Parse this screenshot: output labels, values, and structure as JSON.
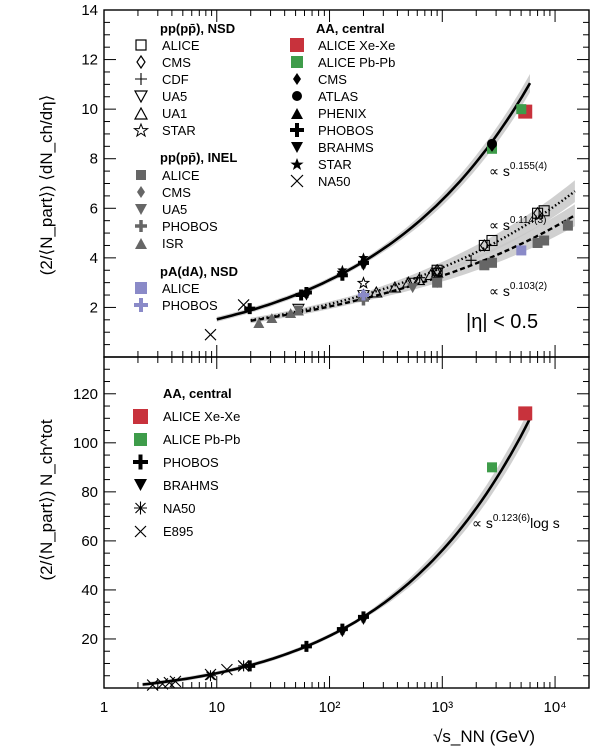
{
  "chart_data": [
    {
      "type": "scatter",
      "panel": "top",
      "xscale": "log",
      "xlim": [
        1,
        20000
      ],
      "ylim": [
        0,
        14
      ],
      "yticks": [
        2,
        4,
        6,
        8,
        10,
        12,
        14
      ],
      "xticks": [
        {
          "v": 1,
          "label": "1"
        },
        {
          "v": 10,
          "label": "10"
        },
        {
          "v": 100,
          "label": "10²"
        },
        {
          "v": 1000,
          "label": "10³"
        },
        {
          "v": 10000,
          "label": "10⁴"
        }
      ],
      "ylabel": "(2/⟨N_part⟩) ⟨dN_ch/dη⟩",
      "annotation": "|η| < 0.5",
      "fit_labels": [
        {
          "text": "∝ s^0.155(4)",
          "pre": "∝ s",
          "sup": "0.155(4)"
        },
        {
          "text": "∝ s^0.114(3)",
          "pre": "∝ s",
          "sup": "0.114(3)"
        },
        {
          "text": "∝ s^0.103(2)",
          "pre": "∝ s",
          "sup": "0.103(2)"
        }
      ],
      "legend": [
        {
          "heading": "pp(pp̄), NSD",
          "items": [
            "ALICE",
            "CMS",
            "CDF",
            "UA5",
            "UA1",
            "STAR"
          ]
        },
        {
          "heading": "pp(pp̄), INEL",
          "items": [
            "ALICE",
            "CMS",
            "UA5",
            "PHOBOS",
            "ISR"
          ]
        },
        {
          "heading": "pA(dA), NSD",
          "items": [
            "ALICE",
            "PHOBOS"
          ]
        },
        {
          "heading": "AA, central",
          "items": [
            "ALICE Xe-Xe",
            "ALICE Pb-Pb",
            "CMS",
            "ATLAS",
            "PHENIX",
            "PHOBOS",
            "BRAHMS",
            "STAR",
            "NA50"
          ]
        }
      ],
      "series": [
        {
          "name": "AA, central: ALICE Xe-Xe",
          "color": "#c8323c",
          "x": [
            5440
          ],
          "y": [
            9.9
          ]
        },
        {
          "name": "AA, central: ALICE Pb-Pb",
          "color": "#3e9c4a",
          "x": [
            2760,
            5020
          ],
          "y": [
            8.4,
            10.0
          ]
        },
        {
          "name": "AA, central: CMS",
          "x": [
            2760
          ],
          "y": [
            8.5
          ]
        },
        {
          "name": "AA, central: ATLAS",
          "x": [
            2760
          ],
          "y": [
            8.6
          ]
        },
        {
          "name": "AA, central: PHENIX",
          "x": [
            130,
            200
          ],
          "y": [
            3.4,
            3.9
          ]
        },
        {
          "name": "AA, central: PHOBOS",
          "x": [
            19.6,
            56,
            62.4,
            130,
            200
          ],
          "y": [
            1.95,
            2.5,
            2.6,
            3.3,
            3.8
          ]
        },
        {
          "name": "AA, central: BRAHMS",
          "x": [
            62.4,
            130,
            200
          ],
          "y": [
            2.5,
            3.3,
            3.7
          ]
        },
        {
          "name": "AA, central: STAR",
          "x": [
            130,
            200
          ],
          "y": [
            3.5,
            4.0
          ]
        },
        {
          "name": "AA, central: NA50",
          "x": [
            8.8,
            17.3
          ],
          "y": [
            0.9,
            2.1
          ]
        },
        {
          "name": "pp(pp̄), NSD: ALICE",
          "x": [
            900,
            2360,
            2760,
            7000,
            8000
          ],
          "y": [
            3.5,
            4.5,
            4.7,
            5.8,
            5.9
          ]
        },
        {
          "name": "pp(pp̄), NSD: CMS",
          "x": [
            900,
            2360,
            7000
          ],
          "y": [
            3.5,
            4.5,
            5.8
          ]
        },
        {
          "name": "pp(pp̄), NSD: CDF",
          "x": [
            630,
            1800
          ],
          "y": [
            3.2,
            3.9
          ]
        },
        {
          "name": "pp(pp̄), NSD: UA5",
          "x": [
            53,
            200,
            546,
            900
          ],
          "y": [
            1.95,
            2.5,
            3.0,
            3.4
          ]
        },
        {
          "name": "pp(pp̄), NSD: UA1",
          "x": [
            200,
            260,
            380,
            500,
            620,
            790,
            900
          ],
          "y": [
            2.5,
            2.6,
            2.8,
            3.0,
            3.1,
            3.3,
            3.4
          ]
        },
        {
          "name": "pp(pp̄), NSD: STAR",
          "x": [
            200
          ],
          "y": [
            2.98
          ]
        },
        {
          "name": "pp(pp̄), INEL: ALICE",
          "x": [
            900,
            2360,
            2760,
            7000,
            8000,
            13000
          ],
          "y": [
            3.0,
            3.7,
            3.8,
            4.6,
            4.7,
            5.3
          ]
        },
        {
          "name": "pp(pp̄), INEL: CMS",
          "x": [
            13000
          ],
          "y": [
            5.4
          ]
        },
        {
          "name": "pp(pp̄), INEL: UA5",
          "x": [
            53,
            200,
            546,
            900
          ],
          "y": [
            1.9,
            2.4,
            2.8,
            3.0
          ]
        },
        {
          "name": "pp(pp̄), INEL: PHOBOS",
          "x": [
            200
          ],
          "y": [
            2.3
          ]
        },
        {
          "name": "pp(pp̄), INEL: ISR",
          "x": [
            23.6,
            30.8,
            45.2,
            53
          ],
          "y": [
            1.35,
            1.55,
            1.75,
            1.85
          ]
        },
        {
          "name": "pA(dA), NSD: ALICE",
          "color": "#8a8ac8",
          "x": [
            5020
          ],
          "y": [
            4.3
          ]
        },
        {
          "name": "pA(dA), NSD: PHOBOS",
          "color": "#8a8ac8",
          "x": [
            200
          ],
          "y": [
            2.5
          ]
        }
      ],
      "fits": [
        {
          "label": "∝ s^0.155(4)",
          "style": "solid",
          "exponent": 0.155,
          "anchor_x": 200,
          "anchor_y": 3.85,
          "from": 10,
          "to": 6000
        },
        {
          "label": "∝ s^0.114(3)",
          "style": "dotted",
          "exponent": 0.114,
          "anchor_x": 200,
          "anchor_y": 2.5,
          "from": 20,
          "to": 15000
        },
        {
          "label": "∝ s^0.103(2)",
          "style": "dashed",
          "exponent": 0.103,
          "anchor_x": 200,
          "anchor_y": 2.35,
          "from": 20,
          "to": 15000
        }
      ]
    },
    {
      "type": "scatter",
      "panel": "bottom",
      "xscale": "log",
      "xlim": [
        1,
        20000
      ],
      "ylim": [
        0,
        135
      ],
      "yticks": [
        20,
        40,
        60,
        80,
        100,
        120
      ],
      "xticks": [
        {
          "v": 1,
          "label": "1"
        },
        {
          "v": 10,
          "label": "10"
        },
        {
          "v": 100,
          "label": "10²"
        },
        {
          "v": 1000,
          "label": "10³"
        },
        {
          "v": 10000,
          "label": "10⁴"
        }
      ],
      "xlabel": "√s_NN (GeV)",
      "ylabel": "(2/⟨N_part⟩) N_ch^tot",
      "fit_labels": [
        {
          "text": "∝ s^0.123(6) log s",
          "pre": "∝ s",
          "sup": "0.123(6)",
          "post": "log s"
        }
      ],
      "legend": [
        {
          "heading": "AA, central",
          "items": [
            "ALICE Xe-Xe",
            "ALICE Pb-Pb",
            "PHOBOS",
            "BRAHMS",
            "NA50",
            "E895"
          ]
        }
      ],
      "series": [
        {
          "name": "ALICE Xe-Xe",
          "color": "#c8323c",
          "x": [
            5440
          ],
          "y": [
            112
          ]
        },
        {
          "name": "ALICE Pb-Pb",
          "color": "#3e9c4a",
          "x": [
            2760
          ],
          "y": [
            90
          ]
        },
        {
          "name": "PHOBOS",
          "x": [
            19.6,
            62.4,
            130,
            200
          ],
          "y": [
            9,
            17,
            24,
            29
          ]
        },
        {
          "name": "BRAHMS",
          "x": [
            130,
            200
          ],
          "y": [
            23,
            28
          ]
        },
        {
          "name": "NA50",
          "x": [
            8.8,
            17.3
          ],
          "y": [
            5,
            9
          ]
        },
        {
          "name": "E895",
          "x": [
            2.7,
            3.3,
            3.8,
            4.3,
            8.8,
            12.3,
            17.3
          ],
          "y": [
            1.2,
            1.7,
            2.2,
            2.7,
            5.5,
            7.5,
            9.0
          ]
        }
      ],
      "fits": [
        {
          "label": "∝ s^0.123(6) log s",
          "style": "solid",
          "exponent": 0.123,
          "form": "power-log",
          "anchor_x": 200,
          "anchor_y": 29,
          "from": 2.2,
          "to": 6000
        }
      ]
    }
  ]
}
